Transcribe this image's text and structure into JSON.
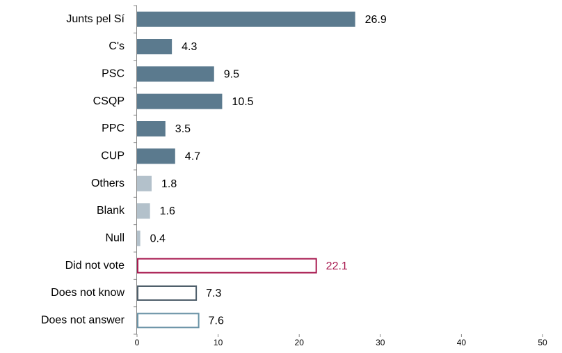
{
  "chart_data": {
    "type": "barh",
    "categories": [
      "Junts pel Sí",
      "C's",
      "PSC",
      "CSQP",
      "PPC",
      "CUP",
      "Others",
      "Blank",
      "Null",
      "Did not vote",
      "Does not know",
      "Does not answer"
    ],
    "values": [
      26.9,
      4.3,
      9.5,
      10.5,
      3.5,
      4.7,
      1.8,
      1.6,
      0.4,
      22.1,
      7.3,
      7.6
    ],
    "colors": [
      "#5b7a8e",
      "#5b7a8e",
      "#5b7a8e",
      "#5b7a8e",
      "#5b7a8e",
      "#5b7a8e",
      "#b3c1cb",
      "#b3c1cb",
      "#b3c1cb",
      "#a8194f",
      "#4f5f6b",
      "#6a93a6"
    ],
    "filled": [
      true,
      true,
      true,
      true,
      true,
      true,
      true,
      true,
      true,
      false,
      false,
      false
    ],
    "xlim": [
      0,
      50
    ],
    "xticks": [
      0,
      10,
      20,
      30,
      40,
      50
    ]
  }
}
